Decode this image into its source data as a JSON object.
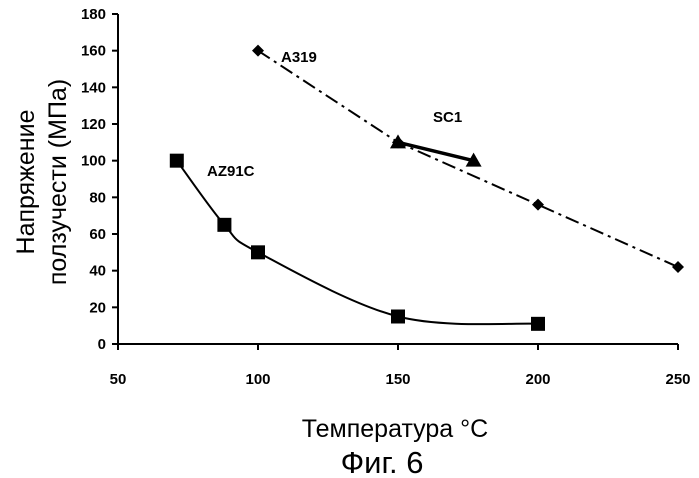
{
  "chart_data": {
    "type": "line",
    "xlabel": "Температура °С",
    "ylabel_line1": "Напряжение",
    "ylabel_line2": "ползучести (МПа)",
    "caption": "Фиг. 6",
    "xlim": [
      50,
      250
    ],
    "ylim": [
      0,
      180
    ],
    "x_ticks": [
      50,
      100,
      150,
      200,
      250
    ],
    "y_ticks": [
      0,
      20,
      40,
      60,
      80,
      100,
      120,
      140,
      160,
      180
    ],
    "grid": false,
    "legend": "none",
    "series": [
      {
        "name": "A319",
        "marker": "diamond",
        "line_style": "dash-dot",
        "color": "#000000",
        "points": [
          {
            "x": 100,
            "y": 160
          },
          {
            "x": 150,
            "y": 110
          },
          {
            "x": 200,
            "y": 76
          },
          {
            "x": 250,
            "y": 42
          }
        ]
      },
      {
        "name": "SC1",
        "marker": "triangle",
        "line_style": "solid-thick",
        "color": "#000000",
        "points": [
          {
            "x": 150,
            "y": 110
          },
          {
            "x": 177,
            "y": 100
          }
        ]
      },
      {
        "name": "AZ91C",
        "marker": "square",
        "line_style": "smooth-solid",
        "color": "#000000",
        "points": [
          {
            "x": 71,
            "y": 100
          },
          {
            "x": 88,
            "y": 65
          },
          {
            "x": 100,
            "y": 50
          },
          {
            "x": 150,
            "y": 15
          },
          {
            "x": 200,
            "y": 11
          }
        ]
      }
    ]
  }
}
